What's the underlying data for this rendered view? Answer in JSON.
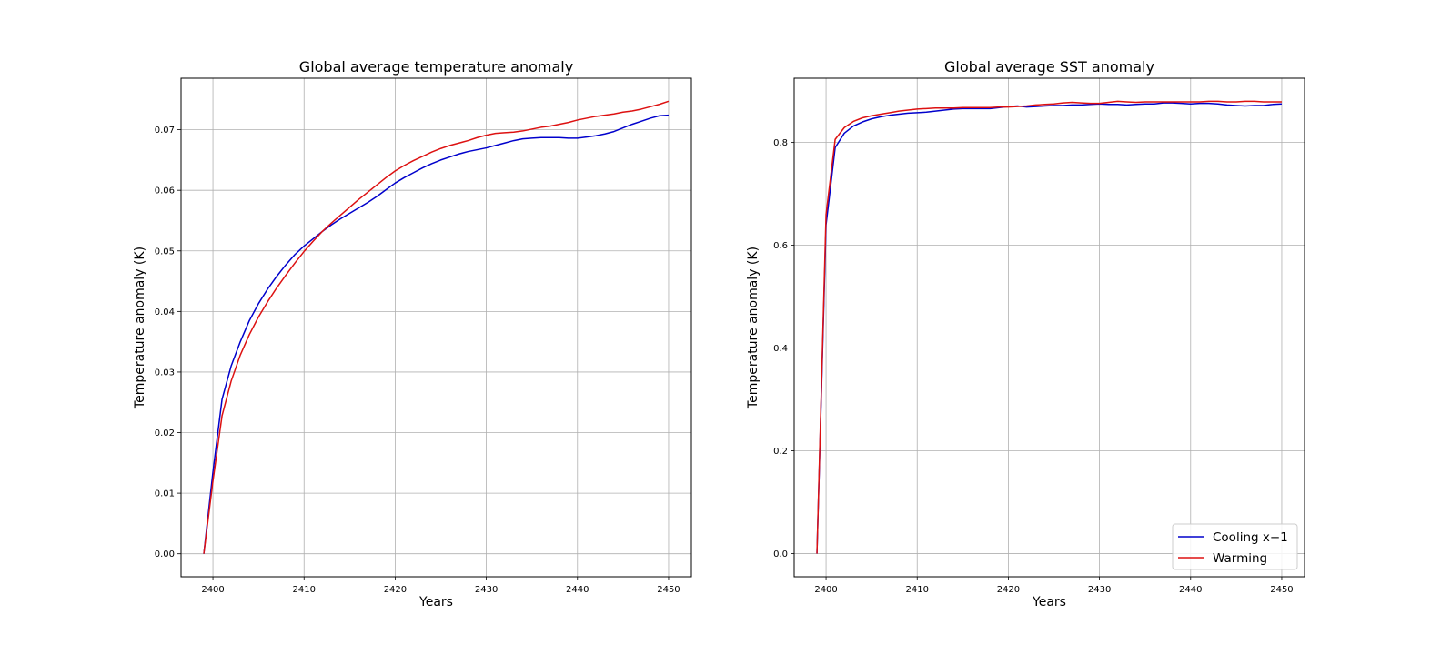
{
  "chart_data": [
    {
      "type": "line",
      "title": "Global average temperature anomaly",
      "xlabel": "Years",
      "ylabel": "Temperature anomaly (K)",
      "xlim": [
        2396.5,
        2452.5
      ],
      "ylim": [
        -0.0038,
        0.0785
      ],
      "xticks": [
        2400,
        2410,
        2420,
        2430,
        2440,
        2450
      ],
      "yticks": [
        0.0,
        0.01,
        0.02,
        0.03,
        0.04,
        0.05,
        0.06,
        0.07
      ],
      "ytick_labels": [
        "0.00",
        "0.01",
        "0.02",
        "0.03",
        "0.04",
        "0.05",
        "0.06",
        "0.07"
      ],
      "grid": true,
      "series": [
        {
          "name": "Cooling x−1",
          "color": "#0000cc",
          "x": [
            2399,
            2400,
            2401,
            2402,
            2403,
            2404,
            2405,
            2406,
            2407,
            2408,
            2409,
            2410,
            2411,
            2412,
            2413,
            2414,
            2415,
            2416,
            2417,
            2418,
            2419,
            2420,
            2421,
            2422,
            2423,
            2424,
            2425,
            2426,
            2427,
            2428,
            2429,
            2430,
            2431,
            2432,
            2433,
            2434,
            2435,
            2436,
            2437,
            2438,
            2439,
            2440,
            2441,
            2442,
            2443,
            2444,
            2445,
            2446,
            2447,
            2448,
            2449,
            2450
          ],
          "y": [
            0.0,
            0.0135,
            0.0255,
            0.031,
            0.035,
            0.0385,
            0.0413,
            0.0437,
            0.0458,
            0.0477,
            0.0494,
            0.0508,
            0.052,
            0.0532,
            0.0543,
            0.0553,
            0.0562,
            0.0571,
            0.058,
            0.059,
            0.0601,
            0.0612,
            0.0621,
            0.0629,
            0.0637,
            0.0644,
            0.065,
            0.0655,
            0.066,
            0.0664,
            0.0667,
            0.067,
            0.0674,
            0.0678,
            0.0682,
            0.0685,
            0.0686,
            0.0687,
            0.0687,
            0.0687,
            0.0686,
            0.0686,
            0.0688,
            0.069,
            0.0693,
            0.0697,
            0.0703,
            0.0709,
            0.0714,
            0.0719,
            0.0723,
            0.0724
          ]
        },
        {
          "name": "Warming",
          "color": "#dd1111",
          "x": [
            2399,
            2400,
            2401,
            2402,
            2403,
            2404,
            2405,
            2406,
            2407,
            2408,
            2409,
            2410,
            2411,
            2412,
            2413,
            2414,
            2415,
            2416,
            2417,
            2418,
            2419,
            2420,
            2421,
            2422,
            2423,
            2424,
            2425,
            2426,
            2427,
            2428,
            2429,
            2430,
            2431,
            2432,
            2433,
            2434,
            2435,
            2436,
            2437,
            2438,
            2439,
            2440,
            2441,
            2442,
            2443,
            2444,
            2445,
            2446,
            2447,
            2448,
            2449,
            2450
          ],
          "y": [
            0.0,
            0.012,
            0.0228,
            0.0285,
            0.0328,
            0.0362,
            0.0391,
            0.0416,
            0.0439,
            0.046,
            0.048,
            0.0499,
            0.0516,
            0.0532,
            0.0546,
            0.0559,
            0.0572,
            0.0585,
            0.0597,
            0.0609,
            0.0621,
            0.0632,
            0.0641,
            0.0649,
            0.0656,
            0.0663,
            0.0669,
            0.0674,
            0.0678,
            0.0682,
            0.0687,
            0.0691,
            0.0694,
            0.0695,
            0.0696,
            0.0698,
            0.0701,
            0.0704,
            0.0706,
            0.0709,
            0.0712,
            0.0716,
            0.0719,
            0.0722,
            0.0724,
            0.0726,
            0.0729,
            0.0731,
            0.0734,
            0.0738,
            0.0742,
            0.0747
          ]
        }
      ]
    },
    {
      "type": "line",
      "title": "Global average SST anomaly",
      "xlabel": "Years",
      "ylabel": "Temperature anomaly (K)",
      "xlim": [
        2396.5,
        2452.5
      ],
      "ylim": [
        -0.045,
        0.925
      ],
      "xticks": [
        2400,
        2410,
        2420,
        2430,
        2440,
        2450
      ],
      "yticks": [
        0.0,
        0.2,
        0.4,
        0.6,
        0.8
      ],
      "ytick_labels": [
        "0.0",
        "0.2",
        "0.4",
        "0.6",
        "0.8"
      ],
      "grid": true,
      "legend": {
        "position": "lower-right",
        "entries": [
          "Cooling x−1",
          "Warming"
        ]
      },
      "series": [
        {
          "name": "Cooling x−1",
          "color": "#0000cc",
          "x": [
            2399,
            2400,
            2401,
            2402,
            2403,
            2404,
            2405,
            2406,
            2407,
            2408,
            2409,
            2410,
            2411,
            2412,
            2413,
            2414,
            2415,
            2416,
            2417,
            2418,
            2419,
            2420,
            2421,
            2422,
            2423,
            2424,
            2425,
            2426,
            2427,
            2428,
            2429,
            2430,
            2431,
            2432,
            2433,
            2434,
            2435,
            2436,
            2437,
            2438,
            2439,
            2440,
            2441,
            2442,
            2443,
            2444,
            2445,
            2446,
            2447,
            2448,
            2449,
            2450
          ],
          "y": [
            0.0,
            0.64,
            0.79,
            0.818,
            0.832,
            0.84,
            0.846,
            0.85,
            0.853,
            0.855,
            0.857,
            0.858,
            0.859,
            0.861,
            0.863,
            0.865,
            0.866,
            0.866,
            0.866,
            0.866,
            0.868,
            0.87,
            0.871,
            0.869,
            0.87,
            0.871,
            0.872,
            0.872,
            0.873,
            0.873,
            0.874,
            0.875,
            0.874,
            0.874,
            0.873,
            0.874,
            0.875,
            0.875,
            0.877,
            0.877,
            0.876,
            0.875,
            0.876,
            0.876,
            0.875,
            0.873,
            0.872,
            0.871,
            0.872,
            0.872,
            0.874,
            0.875
          ]
        },
        {
          "name": "Warming",
          "color": "#dd1111",
          "x": [
            2399,
            2400,
            2401,
            2402,
            2403,
            2404,
            2405,
            2406,
            2407,
            2408,
            2409,
            2410,
            2411,
            2412,
            2413,
            2414,
            2415,
            2416,
            2417,
            2418,
            2419,
            2420,
            2421,
            2422,
            2423,
            2424,
            2425,
            2426,
            2427,
            2428,
            2429,
            2430,
            2431,
            2432,
            2433,
            2434,
            2435,
            2436,
            2437,
            2438,
            2439,
            2440,
            2441,
            2442,
            2443,
            2444,
            2445,
            2446,
            2447,
            2448,
            2449,
            2450
          ],
          "y": [
            0.0,
            0.66,
            0.806,
            0.829,
            0.841,
            0.848,
            0.852,
            0.855,
            0.858,
            0.861,
            0.863,
            0.865,
            0.866,
            0.867,
            0.867,
            0.867,
            0.868,
            0.868,
            0.868,
            0.868,
            0.869,
            0.869,
            0.87,
            0.871,
            0.873,
            0.874,
            0.875,
            0.877,
            0.878,
            0.877,
            0.876,
            0.876,
            0.878,
            0.88,
            0.879,
            0.878,
            0.879,
            0.879,
            0.879,
            0.879,
            0.879,
            0.879,
            0.879,
            0.88,
            0.88,
            0.879,
            0.879,
            0.88,
            0.88,
            0.879,
            0.879,
            0.879
          ]
        }
      ]
    }
  ]
}
